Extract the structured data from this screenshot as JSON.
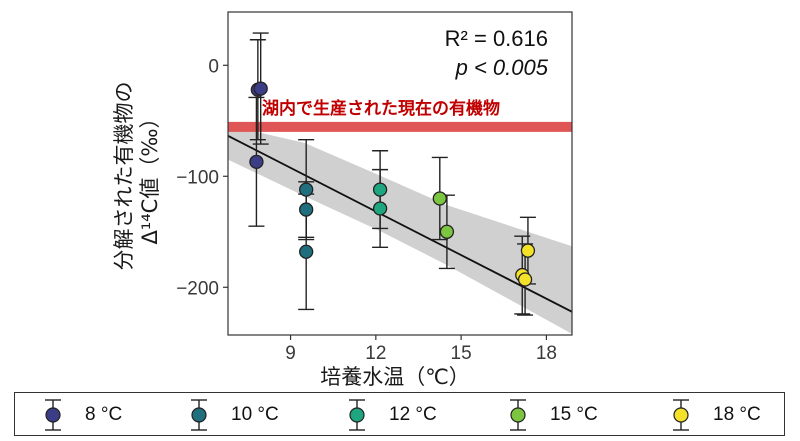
{
  "chart_data": {
    "type": "scatter",
    "xlabel": "培養水温（℃）",
    "ylabel_line1": "分解された有機物の",
    "ylabel_line2": "Δ¹⁴C値（‰）",
    "xlim": [
      6.8,
      18.9
    ],
    "ylim": [
      -243,
      48
    ],
    "xticks": [
      9,
      12,
      15,
      18
    ],
    "yticks": [
      0,
      -100,
      -200
    ],
    "xtick_labels": [
      "9",
      "12",
      "15",
      "18"
    ],
    "ytick_labels": [
      "0",
      "−100",
      "−200"
    ],
    "grid": false,
    "stats": {
      "r2_text": "R² = 0.616",
      "p_text": "p < 0.005"
    },
    "reference_band": {
      "label": "湖内で生産された現在の有機物",
      "y_low": -60,
      "y_high": -51,
      "color": "#e05555"
    },
    "regression": {
      "slope": -13.1,
      "intercept": 25.5,
      "ci_upper": [
        [
          6.8,
          -54
        ],
        [
          9.5,
          -70
        ],
        [
          12.2,
          -100
        ],
        [
          14.5,
          -126
        ],
        [
          18.9,
          -163
        ]
      ],
      "ci_lower": [
        [
          6.8,
          -85
        ],
        [
          9.5,
          -118
        ],
        [
          12.2,
          -150
        ],
        [
          14.5,
          -180
        ],
        [
          18.9,
          -242
        ]
      ]
    },
    "series": [
      {
        "name": "8 °C",
        "color": "#3b3d86",
        "points": [
          {
            "x": 7.85,
            "y": -22,
            "err": 45
          },
          {
            "x": 7.95,
            "y": -21,
            "err": 50
          },
          {
            "x": 7.8,
            "y": -87,
            "err": 58
          }
        ]
      },
      {
        "name": "10 °C",
        "color": "#1f6f7f",
        "points": [
          {
            "x": 9.55,
            "y": -112,
            "err": 45
          },
          {
            "x": 9.55,
            "y": -130,
            "err": 25
          },
          {
            "x": 9.55,
            "y": -168,
            "err": 52
          }
        ]
      },
      {
        "name": "12 °C",
        "color": "#1fa57f",
        "points": [
          {
            "x": 12.15,
            "y": -112,
            "err": 35
          },
          {
            "x": 12.15,
            "y": -129,
            "err": 35
          }
        ]
      },
      {
        "name": "15 °C",
        "color": "#7cc540",
        "points": [
          {
            "x": 14.25,
            "y": -120,
            "err": 37
          },
          {
            "x": 14.5,
            "y": -150,
            "err": 33
          }
        ]
      },
      {
        "name": "18 °C",
        "color": "#f4e12a",
        "points": [
          {
            "x": 17.35,
            "y": -167,
            "err": 30
          },
          {
            "x": 17.15,
            "y": -189,
            "err": 35
          },
          {
            "x": 17.25,
            "y": -193,
            "err": 32
          }
        ]
      }
    ]
  }
}
